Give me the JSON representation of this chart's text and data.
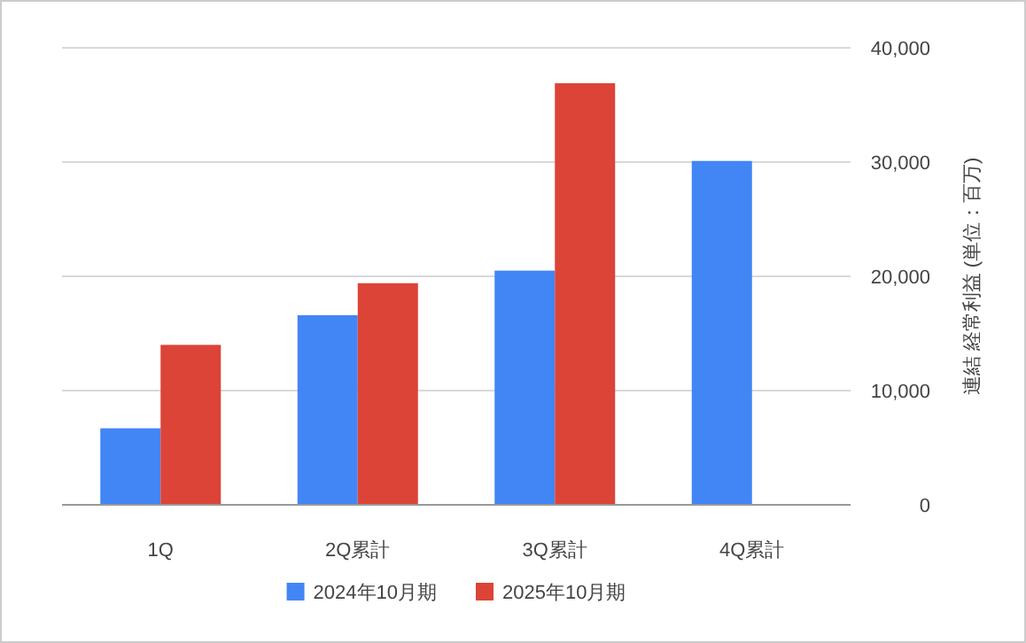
{
  "chart_data": {
    "type": "bar",
    "ylabel": "連結 経常利益 (単位：百万)",
    "categories": [
      "1Q",
      "2Q累計",
      "3Q累計",
      "4Q累計"
    ],
    "series": [
      {
        "name": "2024年10月期",
        "color": "#4285f4",
        "values": [
          6700,
          16600,
          20500,
          30100
        ]
      },
      {
        "name": "2025年10月期",
        "color": "#db4437",
        "values": [
          14000,
          19400,
          36900,
          null
        ]
      }
    ],
    "ylim": [
      0,
      40000
    ],
    "yticks": [
      0,
      {
        "value": 10000,
        "label": "10,000"
      },
      {
        "value": 20000,
        "label": "20,000"
      },
      {
        "value": 30000,
        "label": "30,000"
      },
      {
        "value": 40000,
        "label": "40,000"
      }
    ],
    "grid": "y",
    "legend": "bottom"
  }
}
